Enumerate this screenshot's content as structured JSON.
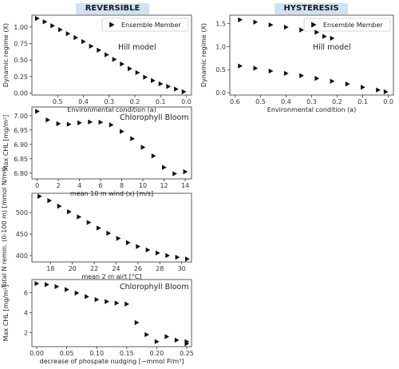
{
  "headers": {
    "left": "REVERSIBLE",
    "right": "HYSTERESIS"
  },
  "chart_data": [
    {
      "id": "hill-reversible",
      "type": "scatter",
      "title": "",
      "xlabel": "Environmental condition (a)",
      "ylabel": "Dynamic regime (X)",
      "xlim": [
        0.6,
        -0.02
      ],
      "ylim": [
        -0.03,
        1.18
      ],
      "xticks": [
        0.5,
        0.4,
        0.3,
        0.2,
        0.1,
        0.0
      ],
      "yticks": [
        0.0,
        0.25,
        0.5,
        0.75,
        1.0
      ],
      "xtick_labels": [
        "0.5",
        "0.4",
        "0.3",
        "0.2",
        "0.1",
        "0.0"
      ],
      "ytick_labels": [
        "0.00",
        "0.25",
        "0.50",
        "0.75",
        "1.00"
      ],
      "annotation": "Hill model",
      "legend": {
        "label": "Ensemble Member",
        "position": "top-right"
      },
      "series": [
        {
          "x": [
            0.58,
            0.55,
            0.52,
            0.49,
            0.46,
            0.43,
            0.4,
            0.37,
            0.34,
            0.31,
            0.28,
            0.25,
            0.22,
            0.19,
            0.16,
            0.13,
            0.1,
            0.07,
            0.04,
            0.01
          ],
          "y": [
            1.13,
            1.08,
            1.02,
            0.96,
            0.9,
            0.84,
            0.78,
            0.71,
            0.65,
            0.58,
            0.51,
            0.44,
            0.37,
            0.31,
            0.24,
            0.19,
            0.14,
            0.1,
            0.06,
            0.02
          ]
        }
      ]
    },
    {
      "id": "hill-hysteresis",
      "type": "scatter",
      "title": "",
      "xlabel": "Environmental condition (a)",
      "ylabel": "Dynamic regime (X)",
      "xlim": [
        0.62,
        -0.02
      ],
      "ylim": [
        -0.05,
        1.68
      ],
      "xticks": [
        0.6,
        0.5,
        0.4,
        0.3,
        0.2,
        0.1,
        0.0
      ],
      "yticks": [
        0.0,
        0.5,
        1.0,
        1.5
      ],
      "xtick_labels": [
        "0.6",
        "0.5",
        "0.4",
        "0.3",
        "0.2",
        "0.1",
        "0.0"
      ],
      "ytick_labels": [
        "0.0",
        "0.5",
        "1.0",
        "1.5"
      ],
      "annotation": "Hill model",
      "legend": {
        "label": "Ensemble Member",
        "position": "top-right"
      },
      "series": [
        {
          "x": [
            0.58,
            0.52,
            0.46,
            0.4,
            0.34,
            0.28,
            0.25,
            0.22
          ],
          "y": [
            1.58,
            1.53,
            1.47,
            1.42,
            1.36,
            1.31,
            1.22,
            1.18
          ]
        },
        {
          "x": [
            0.58,
            0.52,
            0.46,
            0.4,
            0.34,
            0.28,
            0.22,
            0.16,
            0.1,
            0.04,
            0.01
          ],
          "y": [
            0.58,
            0.53,
            0.47,
            0.42,
            0.37,
            0.31,
            0.25,
            0.19,
            0.12,
            0.06,
            0.02
          ]
        }
      ]
    },
    {
      "id": "chl-wind",
      "type": "scatter",
      "title": "",
      "xlabel": "mean 10 m wind (x) [m/s]",
      "ylabel": "Max CHL [mg/m²]",
      "xlim": [
        -0.5,
        14.6
      ],
      "ylim": [
        6.78,
        7.03
      ],
      "xticks": [
        0,
        2,
        4,
        6,
        8,
        10,
        12,
        14
      ],
      "yticks": [
        6.8,
        6.85,
        6.9,
        6.95,
        7.0
      ],
      "xtick_labels": [
        "0",
        "2",
        "4",
        "6",
        "8",
        "10",
        "12",
        "14"
      ],
      "ytick_labels": [
        "6.80",
        "6.85",
        "6.90",
        "6.95",
        "7.00"
      ],
      "annotation": "Chlorophyll Bloom",
      "series": [
        {
          "x": [
            0,
            1,
            2,
            3,
            4,
            5,
            6,
            7,
            8,
            9,
            10,
            11,
            12,
            13,
            14
          ],
          "y": [
            7.015,
            6.985,
            6.972,
            6.97,
            6.975,
            6.978,
            6.977,
            6.968,
            6.945,
            6.92,
            6.89,
            6.86,
            6.82,
            6.798,
            6.805
          ]
        }
      ]
    },
    {
      "id": "n-airt",
      "type": "scatter",
      "title": "",
      "xlabel": "mean 2 m airt [°C]",
      "ylabel": "Total N remin. (0-100 m) [mmol N/m²]",
      "xlim": [
        16.3,
        30.9
      ],
      "ylim": [
        385,
        545
      ],
      "xticks": [
        18,
        20,
        22,
        24,
        26,
        28,
        30
      ],
      "yticks": [
        400,
        450,
        500
      ],
      "xtick_labels": [
        "18",
        "20",
        "22",
        "24",
        "26",
        "28",
        "30"
      ],
      "ytick_labels": [
        "400",
        "450",
        "500"
      ],
      "series": [
        {
          "x": [
            17,
            17.9,
            18.8,
            19.7,
            20.6,
            21.5,
            22.4,
            23.3,
            24.2,
            25.1,
            26,
            26.9,
            27.8,
            28.7,
            29.6,
            30.5
          ],
          "y": [
            538,
            528,
            515,
            502,
            490,
            477,
            464,
            452,
            440,
            430,
            421,
            413,
            406,
            400,
            396,
            392
          ]
        }
      ]
    },
    {
      "id": "chl-phosphate",
      "type": "scatter",
      "title": "",
      "xlabel": "decrease of phospate nudging [−mmol P/m³]",
      "ylabel": "Max CHL [mg/m²]",
      "xlim": [
        -0.008,
        0.258
      ],
      "ylim": [
        0.6,
        7.3
      ],
      "xticks": [
        0.0,
        0.05,
        0.1,
        0.15,
        0.2,
        0.25
      ],
      "yticks": [
        2,
        4,
        6
      ],
      "xtick_labels": [
        "0.00",
        "0.05",
        "0.10",
        "0.15",
        "0.20",
        "0.25"
      ],
      "ytick_labels": [
        "2",
        "4",
        "6"
      ],
      "annotation": "Chlorophyll Bloom",
      "series": [
        {
          "x": [
            0.0,
            0.0167,
            0.0333,
            0.05,
            0.0667,
            0.0833,
            0.1,
            0.1167,
            0.1333,
            0.15,
            0.1667,
            0.1833,
            0.2,
            0.2167,
            0.2333,
            0.25,
            0.25
          ],
          "y": [
            6.9,
            6.8,
            6.6,
            6.3,
            5.95,
            5.6,
            5.3,
            5.1,
            4.95,
            4.85,
            3.0,
            1.8,
            1.1,
            1.6,
            1.25,
            1.1,
            0.9
          ]
        }
      ]
    }
  ]
}
